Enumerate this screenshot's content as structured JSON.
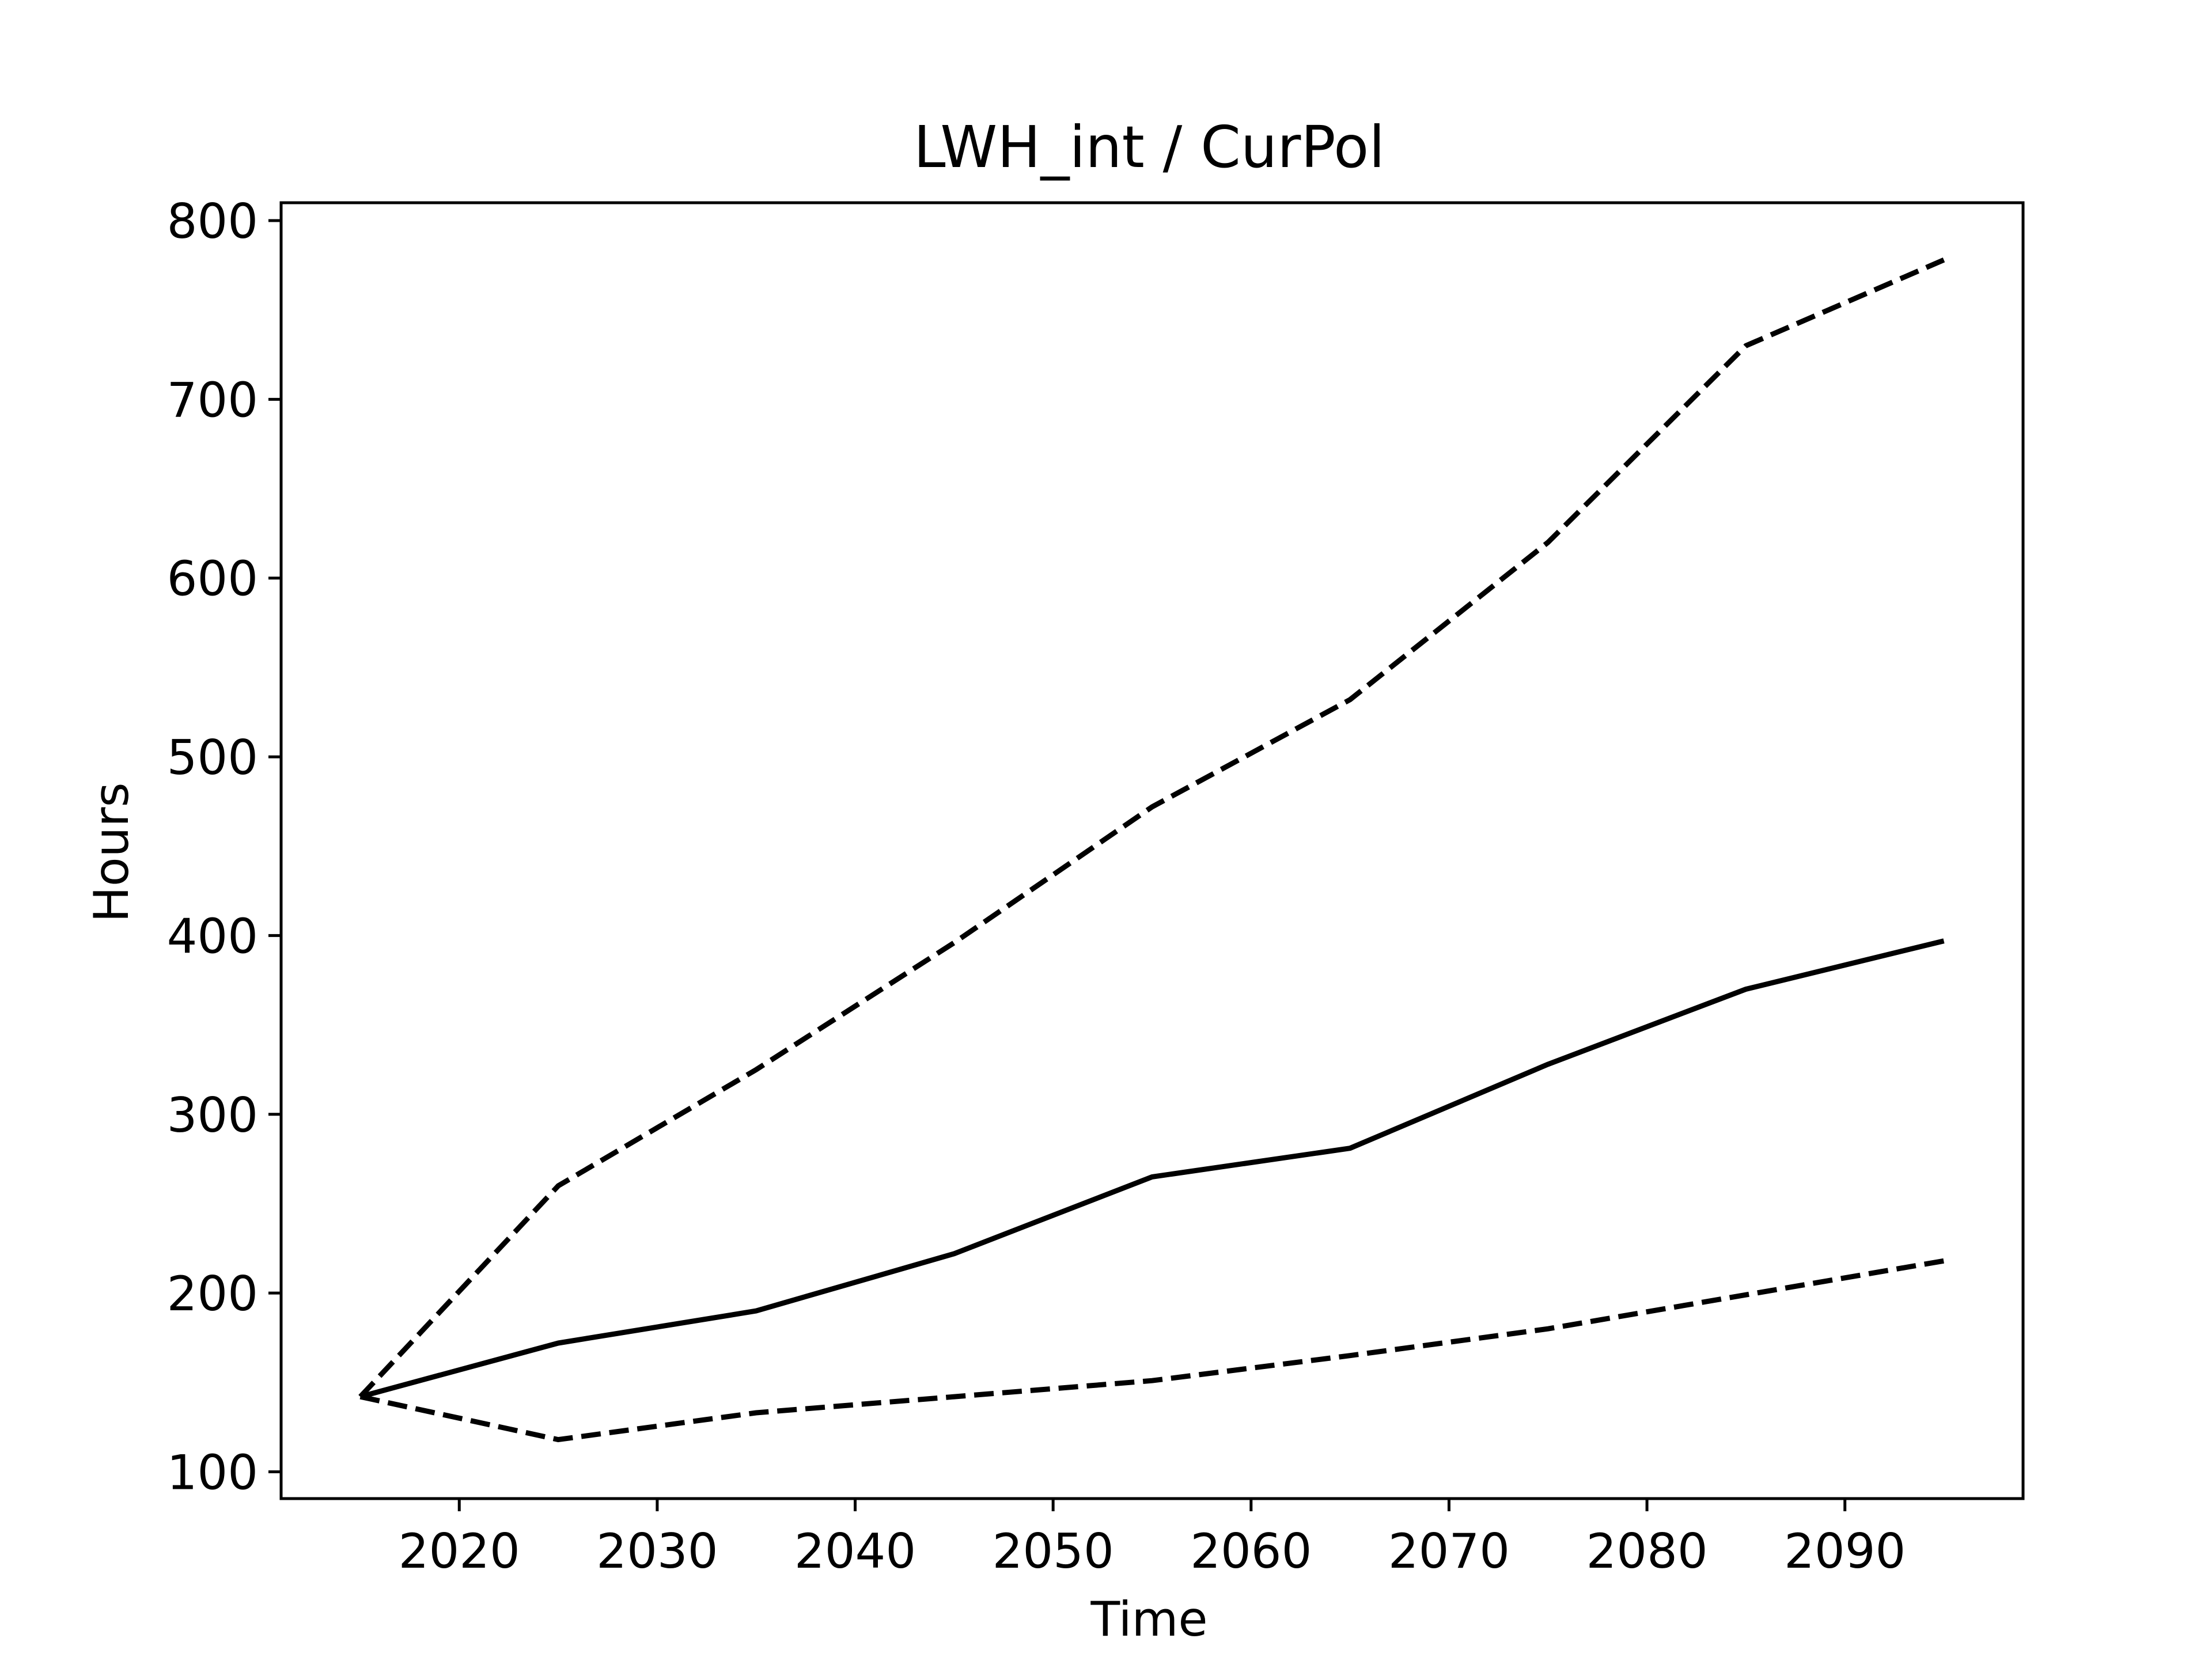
{
  "chart_data": {
    "type": "line",
    "title": "LWH_int / CurPol",
    "xlabel": "Time",
    "ylabel": "Hours",
    "xlim": [
      2011,
      2099
    ],
    "ylim": [
      85,
      810
    ],
    "x_ticks": [
      2020,
      2030,
      2040,
      2050,
      2060,
      2070,
      2080,
      2090
    ],
    "y_ticks": [
      100,
      200,
      300,
      400,
      500,
      600,
      700,
      800
    ],
    "x": [
      2015,
      2025,
      2035,
      2045,
      2055,
      2065,
      2075,
      2085,
      2095
    ],
    "grid": false,
    "legend": "none",
    "series": [
      {
        "style": "dashed",
        "color": "#000000",
        "values": [
          142,
          260,
          325,
          396,
          472,
          532,
          620,
          730,
          778
        ]
      },
      {
        "style": "solid",
        "color": "#000000",
        "values": [
          142,
          172,
          190,
          222,
          265,
          281,
          328,
          370,
          397
        ]
      },
      {
        "style": "dashed",
        "color": "#000000",
        "values": [
          142,
          118,
          133,
          142,
          151,
          165,
          180,
          199,
          218
        ]
      }
    ]
  }
}
